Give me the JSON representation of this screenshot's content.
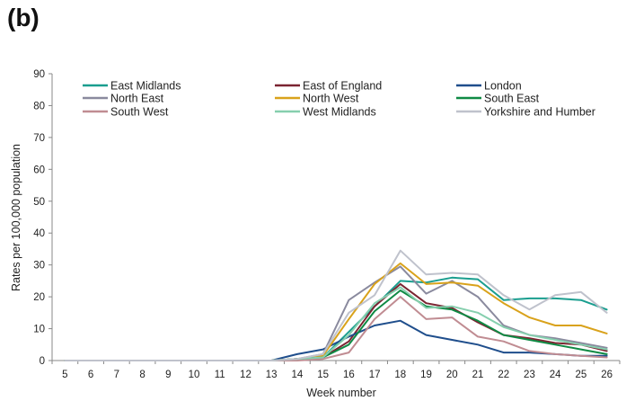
{
  "panel_label": "(b)",
  "chart_data": {
    "type": "line",
    "title": "",
    "xlabel": "Week number",
    "ylabel": "Rates per 100,000 population",
    "x": [
      5,
      6,
      7,
      8,
      9,
      10,
      11,
      12,
      13,
      14,
      15,
      16,
      17,
      18,
      19,
      20,
      21,
      22,
      23,
      24,
      25,
      26
    ],
    "xlim": [
      5,
      26
    ],
    "ylim": [
      0,
      90
    ],
    "yticks": [
      0,
      10,
      20,
      30,
      40,
      50,
      60,
      70,
      80,
      90
    ],
    "grid": false,
    "legend_position": "top",
    "series": [
      {
        "name": "East Midlands",
        "color": "#1a9e8f",
        "values": [
          0,
          0,
          0,
          0,
          0,
          0,
          0,
          0,
          0,
          0.5,
          1,
          9,
          17,
          25,
          24.5,
          26,
          25.5,
          19,
          19.5,
          19.5,
          19,
          16
        ]
      },
      {
        "name": "East of England",
        "color": "#7b2431",
        "values": [
          0,
          0,
          0,
          0,
          0,
          0,
          0,
          0,
          0,
          0.5,
          1,
          6,
          17,
          24,
          18,
          16.5,
          12,
          8,
          7,
          5.5,
          5,
          3
        ]
      },
      {
        "name": "London",
        "color": "#1f4e8c",
        "values": [
          0,
          0,
          0,
          0,
          0,
          0,
          0,
          0,
          0,
          2,
          3.5,
          7.5,
          11,
          12.5,
          8,
          6.5,
          5,
          2.5,
          2.5,
          2,
          1.5,
          1.5
        ]
      },
      {
        "name": "North East",
        "color": "#8a8a9e",
        "values": [
          0,
          0,
          0,
          0,
          0,
          0,
          0,
          0,
          0,
          0.5,
          2,
          19,
          24.5,
          29.5,
          21,
          25,
          20,
          11,
          8,
          7,
          5.5,
          4
        ]
      },
      {
        "name": "North West",
        "color": "#d9a21b",
        "values": [
          0,
          0,
          0,
          0,
          0,
          0,
          0,
          0,
          0,
          0.5,
          1.5,
          13,
          24,
          30.5,
          24,
          24.5,
          23.5,
          18,
          13.5,
          11,
          11,
          8.5
        ]
      },
      {
        "name": "South East",
        "color": "#0f8a44",
        "values": [
          0,
          0,
          0,
          0,
          0,
          0,
          0,
          0,
          0,
          0.5,
          1,
          5,
          15.5,
          22,
          17,
          16,
          12.5,
          8,
          6.5,
          5,
          3.5,
          2
        ]
      },
      {
        "name": "South West",
        "color": "#c08c92",
        "values": [
          0,
          0,
          0,
          0,
          0,
          0,
          0,
          0,
          0,
          0,
          0.5,
          2.5,
          13,
          20,
          13,
          13.5,
          7.5,
          6,
          3,
          2,
          1.5,
          1
        ]
      },
      {
        "name": "West Midlands",
        "color": "#86cfae",
        "values": [
          0,
          0,
          0,
          0,
          0,
          0,
          0,
          0,
          0,
          0.5,
          1,
          8,
          18,
          23,
          16.5,
          17,
          15,
          10.5,
          8,
          6.5,
          5,
          3.5
        ]
      },
      {
        "name": "Yorkshire and Humber",
        "color": "#bfc2cc",
        "values": [
          0,
          0,
          0,
          0,
          0,
          0,
          0,
          0,
          0,
          0.5,
          2,
          15,
          20.5,
          34.5,
          27,
          27.5,
          27,
          20.5,
          16,
          20.5,
          21.5,
          15
        ]
      }
    ]
  }
}
